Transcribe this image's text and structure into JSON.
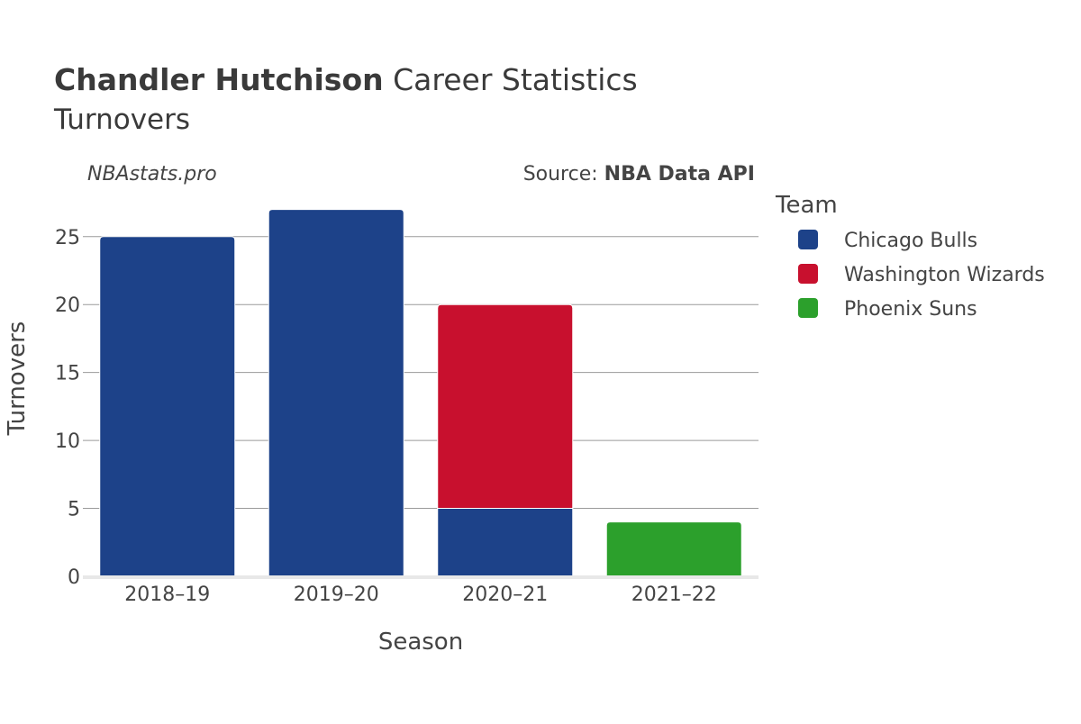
{
  "title": {
    "bold": "Chandler Hutchison",
    "rest": " Career Statistics",
    "subtitle": "Turnovers"
  },
  "meta": {
    "site": "NBAstats.pro",
    "source_prefix": "Source: ",
    "source_name": "NBA Data API"
  },
  "chart_data": {
    "type": "bar",
    "stacked": true,
    "categories": [
      "2018–19",
      "2019–20",
      "2020–21",
      "2021–22"
    ],
    "series": [
      {
        "name": "Chicago Bulls",
        "color": "#1d4289",
        "values": [
          25,
          27,
          5,
          0
        ]
      },
      {
        "name": "Washington Wizards",
        "color": "#c8102e",
        "values": [
          0,
          0,
          15,
          0
        ]
      },
      {
        "name": "Phoenix Suns",
        "color": "#2ca02c",
        "values": [
          0,
          0,
          0,
          4
        ]
      }
    ],
    "xlabel": "Season",
    "ylabel": "Turnovers",
    "ylim": [
      0,
      28.5
    ],
    "yticks": [
      0,
      5,
      10,
      15,
      20,
      25
    ],
    "grid": true,
    "legend": {
      "title": "Team",
      "placement": "right"
    }
  }
}
